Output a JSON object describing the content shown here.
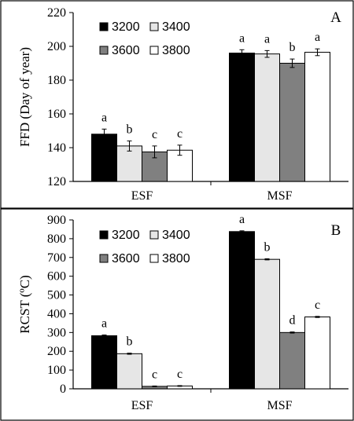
{
  "chart_data": [
    {
      "type": "bar",
      "panel_label": "A",
      "ylabel": "FFD (Day of year)",
      "xlabel": "",
      "ylim": [
        120,
        220
      ],
      "yticks": [
        120,
        140,
        160,
        180,
        200,
        220
      ],
      "categories": [
        "ESF",
        "MSF"
      ],
      "series": [
        {
          "name": "3200",
          "values": [
            148,
            196
          ],
          "errors": [
            3,
            2
          ],
          "letters": [
            "a",
            "a"
          ],
          "color": "#000000"
        },
        {
          "name": "3400",
          "values": [
            141,
            195.5
          ],
          "errors": [
            3,
            2
          ],
          "letters": [
            "b",
            "a"
          ],
          "color": "#e6e6e6"
        },
        {
          "name": "3600",
          "values": [
            137.5,
            190
          ],
          "errors": [
            3.5,
            2.5
          ],
          "letters": [
            "c",
            "b"
          ],
          "color": "#808080"
        },
        {
          "name": "3800",
          "values": [
            138.5,
            196.5
          ],
          "errors": [
            3,
            2
          ],
          "letters": [
            "c",
            "a"
          ],
          "color": "#ffffff"
        }
      ],
      "legend": "top-left"
    },
    {
      "type": "bar",
      "panel_label": "B",
      "ylabel": "RCST (ºC)",
      "xlabel": "",
      "ylim": [
        0,
        900
      ],
      "yticks": [
        0,
        100,
        200,
        300,
        400,
        500,
        600,
        700,
        800,
        900
      ],
      "categories": [
        "ESF",
        "MSF"
      ],
      "series": [
        {
          "name": "3200",
          "values": [
            283,
            838
          ],
          "errors": [
            4,
            4
          ],
          "letters": [
            "a",
            "a"
          ],
          "color": "#000000"
        },
        {
          "name": "3400",
          "values": [
            187,
            690
          ],
          "errors": [
            3,
            3
          ],
          "letters": [
            "b",
            "b"
          ],
          "color": "#e6e6e6"
        },
        {
          "name": "3600",
          "values": [
            13,
            300
          ],
          "errors": [
            2,
            3
          ],
          "letters": [
            "c",
            "d"
          ],
          "color": "#808080"
        },
        {
          "name": "3800",
          "values": [
            15,
            383
          ],
          "errors": [
            2,
            3
          ],
          "letters": [
            "c",
            "c"
          ],
          "color": "#ffffff"
        }
      ],
      "legend": "top-left"
    }
  ]
}
